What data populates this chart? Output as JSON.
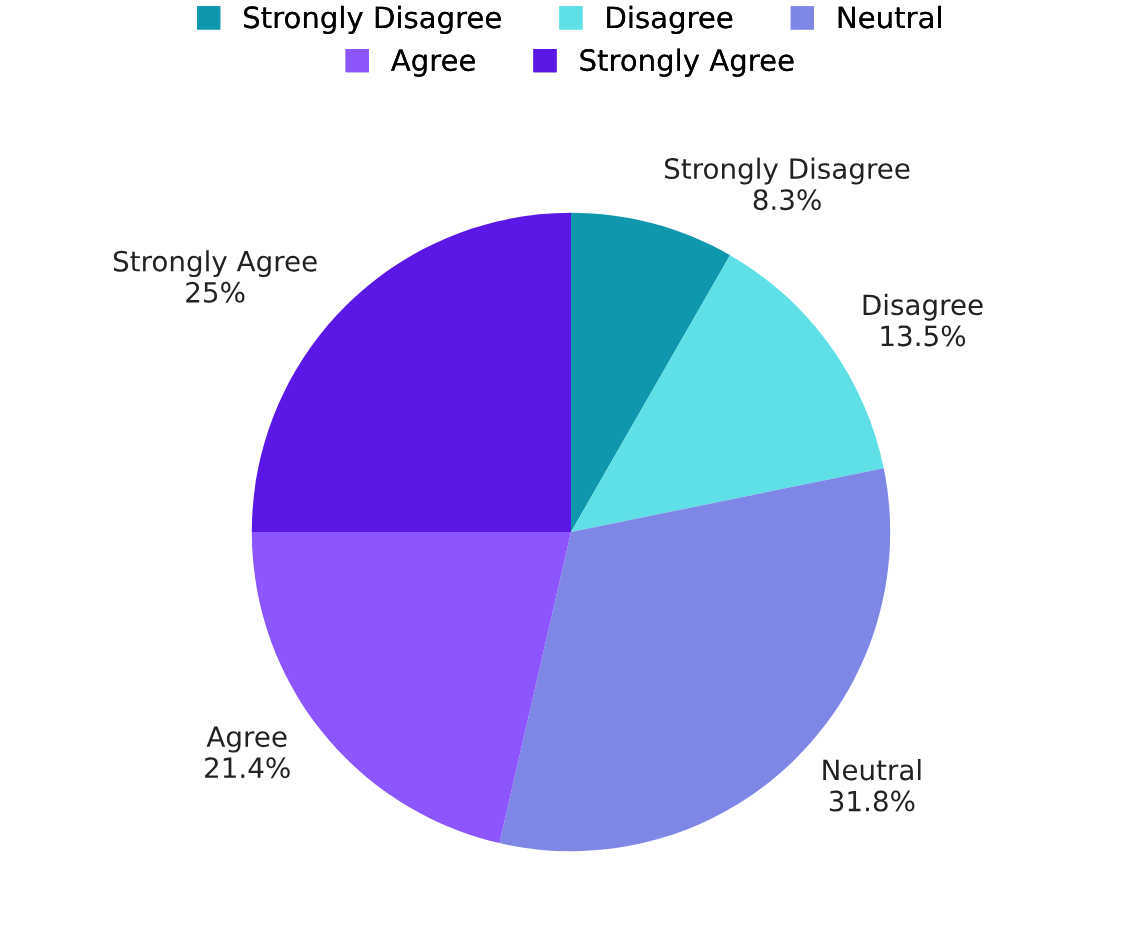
{
  "chart_data": {
    "type": "pie",
    "categories": [
      "Strongly Disagree",
      "Disagree",
      "Neutral",
      "Agree",
      "Strongly Agree"
    ],
    "values": [
      8.3,
      13.5,
      31.8,
      21.4,
      25
    ],
    "value_labels": [
      "8.3%",
      "13.5%",
      "31.8%",
      "21.4%",
      "25%"
    ],
    "colors": [
      "#0f97ad",
      "#5ee0e6",
      "#7e86e6",
      "#8c55fd",
      "#5a17e6"
    ],
    "legend": "top"
  }
}
